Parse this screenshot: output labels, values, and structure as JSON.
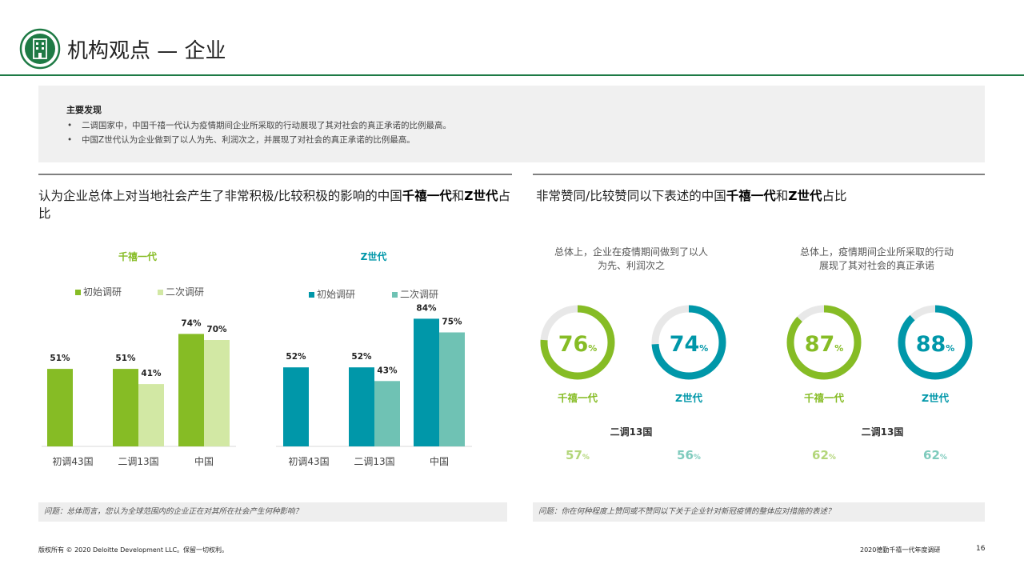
{
  "header": {
    "title": "机构观点 — 企业"
  },
  "findings": {
    "title": "主要发现",
    "items": [
      "二调国家中，中国千禧一代认为疫情期间企业所采取的行动展现了其对社会的真正承诺的比例最高。",
      "中国Z世代认为企业做到了以人为先、利润次之，并展现了对社会的真正承诺的比例最高。"
    ]
  },
  "left_section": {
    "title_prefix": "认为企业总体上对当地社会产生了非常积极/比较积极的影响的中国",
    "title_bold1": "千禧一代",
    "title_mid": "和",
    "title_bold2": "Z世代",
    "title_suffix": "占比",
    "question": "问题：总体而言，您认为全球范围内的企业正在对其所在社会产生何种影响？"
  },
  "right_section": {
    "title_prefix": "非常赞同/比较赞同以下表述的中国",
    "title_bold1": "千禧一代",
    "title_mid": "和",
    "title_bold2": "Z世代",
    "title_suffix": "占比",
    "question": "问题：你在何种程度上赞同或不赞同以下关于企业针对新冠疫情的整体应对措施的表述？"
  },
  "colors": {
    "millennial_initial": "#86bc25",
    "millennial_second": "#d2e8a4",
    "genz_initial": "#0097a9",
    "genz_second": "#6fc2b4",
    "brand_green": "#1e7a45"
  },
  "chart_data": [
    {
      "type": "bar",
      "title": "千禧一代",
      "categories": [
        "初调43国",
        "二调13国",
        "中国"
      ],
      "series": [
        {
          "name": "初始调研",
          "values": [
            51,
            51,
            74
          ]
        },
        {
          "name": "二次调研",
          "values": [
            null,
            41,
            70
          ]
        }
      ],
      "unit": "%",
      "ylim": [
        0,
        100
      ],
      "grid": false,
      "legend": "top-left"
    },
    {
      "type": "bar",
      "title": "Z世代",
      "categories": [
        "初调43国",
        "二调13国",
        "中国"
      ],
      "series": [
        {
          "name": "初始调研",
          "values": [
            52,
            52,
            84
          ]
        },
        {
          "name": "二次调研",
          "values": [
            null,
            43,
            75
          ]
        }
      ],
      "unit": "%",
      "ylim": [
        0,
        100
      ],
      "grid": false,
      "legend": "top-left"
    },
    {
      "type": "pie",
      "title": "总体上，企业在疫情期间做到了以人为先、利润次之",
      "series": [
        {
          "name": "千禧一代",
          "value": 76,
          "second_survey_13": 57
        },
        {
          "name": "Z世代",
          "value": 74,
          "second_survey_13": 56
        }
      ],
      "second_survey_label": "二调13国",
      "unit": "%"
    },
    {
      "type": "pie",
      "title": "总体上，疫情期间企业所采取的行动展现了其对社会的真正承诺",
      "series": [
        {
          "name": "千禧一代",
          "value": 87,
          "second_survey_13": 62
        },
        {
          "name": "Z世代",
          "value": 88,
          "second_survey_13": 62
        }
      ],
      "second_survey_label": "二调13国",
      "unit": "%"
    }
  ],
  "footer": {
    "copyright": "版权所有 © 2020 Deloitte Development LLC。保留一切权利。",
    "report_name": "2020德勤千禧一代年度调研",
    "page_number": "16"
  }
}
